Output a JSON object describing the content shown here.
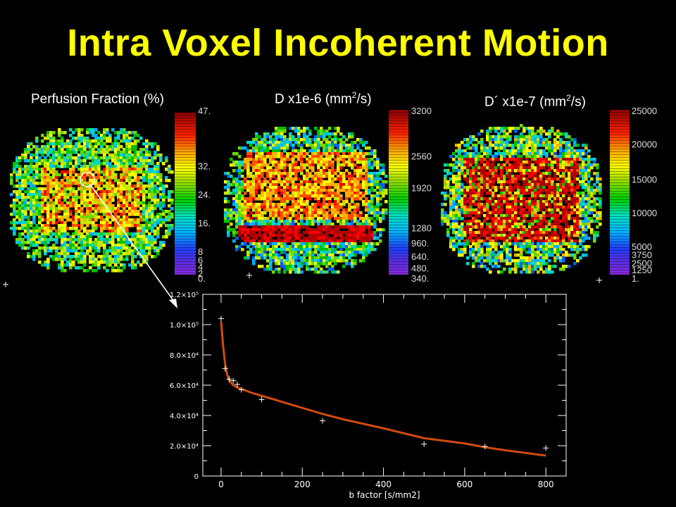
{
  "title": "Intra Voxel Incoherent Motion",
  "maps": [
    {
      "title_main": "Perfusion Fraction (%)",
      "title_sup": "",
      "title_tail": "",
      "colorbar_labels": [
        "47.",
        "32.",
        "24.",
        "16.",
        "8",
        "6",
        "4",
        "2",
        "0."
      ]
    },
    {
      "title_main": "D x1e-6 (mm",
      "title_sup": "2",
      "title_tail": "/s)",
      "colorbar_labels": [
        "3200",
        "2560",
        "1920",
        "1280",
        "960.",
        "640.",
        "480.",
        "340."
      ]
    },
    {
      "title_main": "D´ x1e-7 (mm",
      "title_sup": "2",
      "title_tail": "/s)",
      "colorbar_labels": [
        "25000",
        "20000",
        "15000",
        "10000",
        "5000",
        "3750",
        "2500",
        "1250",
        "1."
      ]
    }
  ],
  "chart_data": {
    "type": "scatter",
    "title": "",
    "xlabel": "b factor [s/mm2]",
    "ylabel": "",
    "xlim": [
      -45,
      850
    ],
    "ylim": [
      0,
      120000
    ],
    "x_ticks": [
      0,
      200,
      400,
      600,
      800
    ],
    "y_ticks": [
      0,
      20000,
      40000,
      60000,
      80000,
      100000,
      120000
    ],
    "y_tick_labels": [
      "0",
      "2.0×10⁴",
      "4.0×10⁴",
      "6.0×10⁴",
      "8.0×10⁴",
      "1.0×10⁵",
      "1.2×10⁵"
    ],
    "grid": false,
    "legend": "none",
    "series": [
      {
        "kind": "points",
        "x": [
          0,
          10,
          20,
          30,
          40,
          50,
          100,
          250,
          500,
          650,
          800
        ],
        "y": [
          104000,
          71000,
          64000,
          63000,
          60500,
          57000,
          50500,
          36500,
          21000,
          19500,
          18500
        ]
      },
      {
        "kind": "fit",
        "x": [
          0,
          5,
          10,
          15,
          20,
          25,
          30,
          40,
          50,
          75,
          100,
          150,
          200,
          250,
          300,
          400,
          500,
          600,
          650,
          700,
          800
        ],
        "y": [
          102000,
          86000,
          74000,
          67000,
          63000,
          61500,
          60000,
          58500,
          57500,
          55000,
          53000,
          49000,
          45000,
          41000,
          37500,
          31500,
          25000,
          21500,
          19000,
          17000,
          13500
        ]
      }
    ]
  },
  "colors": {
    "title": "#ffff00",
    "fit_line": "#d24a0e",
    "points": "#ffffff",
    "axis": "#ffffff"
  }
}
